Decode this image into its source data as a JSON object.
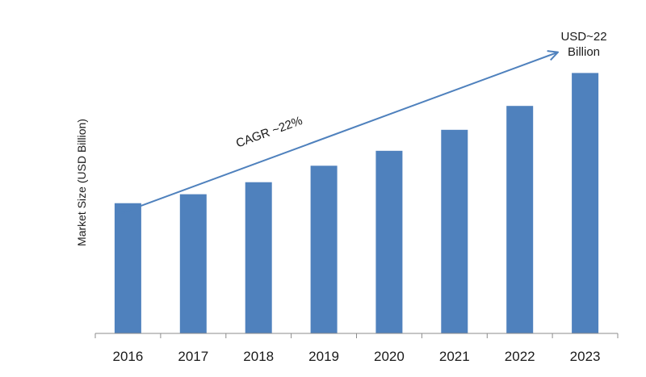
{
  "chart_data": {
    "type": "bar",
    "title": "",
    "xlabel": "",
    "ylabel": "Market Size (USD Billion)",
    "categories": [
      "2016",
      "2017",
      "2018",
      "2019",
      "2020",
      "2021",
      "2022",
      "2023"
    ],
    "values": [
      8.7,
      9.3,
      10.1,
      11.2,
      12.2,
      13.6,
      15.2,
      17.4
    ],
    "ylim": [
      0,
      18.5
    ],
    "grid": false,
    "legend": "none",
    "bar_color": "#4f81bd",
    "arrow_color": "#4f81bd",
    "annotations": {
      "cagr": "CAGR ~22%",
      "end_value_line1": "USD~22",
      "end_value_line2": "Billion"
    }
  }
}
